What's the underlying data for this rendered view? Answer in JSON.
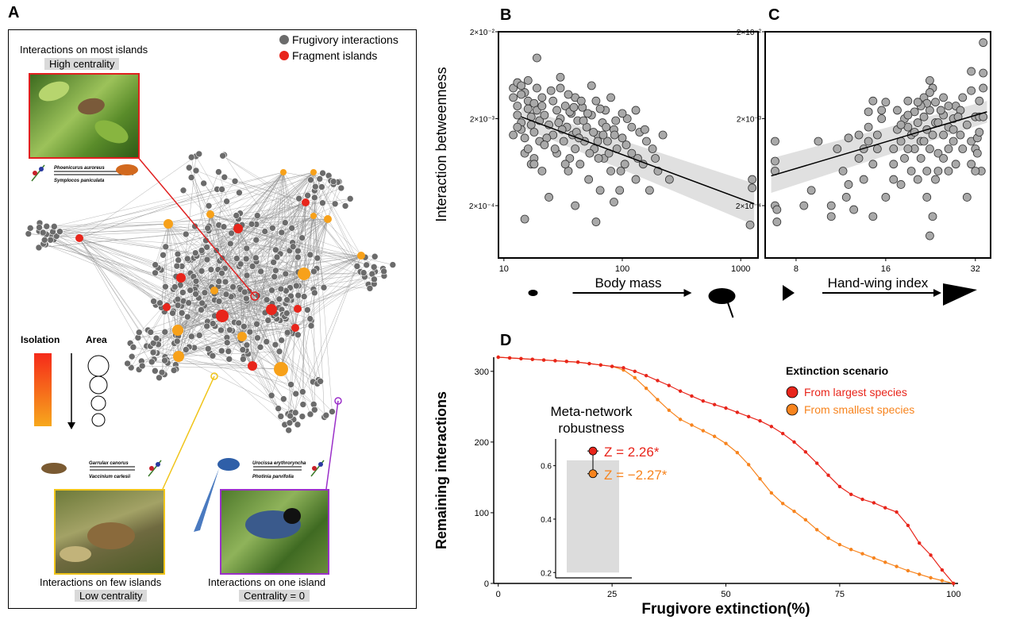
{
  "panels": {
    "a": "A",
    "b": "B",
    "c": "C",
    "d": "D"
  },
  "panel_a": {
    "legend": {
      "frugivory": "Frugivory interactions",
      "fragment": "Fragment islands"
    },
    "top_caption": "Interactions on most islands",
    "top_tag": "High centrality",
    "left_caption": "Interactions on few islands",
    "left_tag": "Low centrality",
    "right_caption": "Interactions on one island",
    "right_tag": "Centrality = 0",
    "isolation_label": "Isolation",
    "area_label": "Area",
    "species_top": {
      "bird": "Phoenicurus auroreus",
      "plant": "Symplocos paniculata"
    },
    "species_left": {
      "bird": "Garrulax canorus",
      "plant": "Vaccinium carlesii"
    },
    "species_right": {
      "bird": "Urocissa erythroryncha",
      "plant": "Photinia parvifolia"
    },
    "colors": {
      "node": "#6b6b6b",
      "red": "#e8251b",
      "orange": "#f7a11a",
      "border_top": "#e02020",
      "border_left": "#f0c419",
      "border_right": "#9b30c9"
    }
  },
  "y_axis_bc": "Interaction betweenness",
  "chart_data": [
    {
      "id": "B",
      "type": "scatter",
      "xlabel": "Body mass",
      "ylabel": "Interaction betweenness",
      "x_scale": "log",
      "y_scale": "log",
      "xlim": [
        9,
        1400
      ],
      "ylim": [
        5e-05,
        0.02
      ],
      "xticks": [
        10,
        100,
        1000
      ],
      "xtick_labels": [
        "10",
        "100",
        "1000"
      ],
      "yticks": [
        0.0002,
        0.002,
        0.02
      ],
      "ytick_labels": [
        "2×10⁻⁴",
        "2×10⁻³",
        "2×10⁻²"
      ],
      "trend": {
        "x": [
          14,
          1300
        ],
        "y": [
          0.0021,
          0.00021
        ],
        "ci_low_start": 0.0016,
        "ci_high_start": 0.0027,
        "ci_low_end": 0.00012,
        "ci_high_end": 0.00036
      },
      "points": [
        [
          12,
          0.0045
        ],
        [
          12,
          0.0035
        ],
        [
          13,
          0.0028
        ],
        [
          13,
          0.0022
        ],
        [
          14,
          0.0018
        ],
        [
          14,
          0.0015
        ],
        [
          15,
          0.0012
        ],
        [
          15,
          0.004
        ],
        [
          16,
          0.0032
        ],
        [
          16,
          0.0026
        ],
        [
          17,
          0.0021
        ],
        [
          17,
          0.0017
        ],
        [
          18,
          0.0014
        ],
        [
          18,
          0.003
        ],
        [
          19,
          0.0025
        ],
        [
          19,
          0.0045
        ],
        [
          20,
          0.0019
        ],
        [
          20,
          0.0011
        ],
        [
          21,
          0.0035
        ],
        [
          21,
          0.0028
        ],
        [
          22,
          0.0022
        ],
        [
          12,
          0.0013
        ],
        [
          13,
          0.0016
        ],
        [
          14,
          0.0038
        ],
        [
          15,
          0.0008
        ],
        [
          16,
          0.0009
        ],
        [
          17,
          0.0006
        ],
        [
          18,
          0.0007
        ],
        [
          19,
          0.01
        ],
        [
          21,
          0.0005
        ],
        [
          24,
          0.0017
        ],
        [
          26,
          0.0032
        ],
        [
          26,
          0.0013
        ],
        [
          28,
          0.0025
        ],
        [
          28,
          0.0008
        ],
        [
          30,
          0.002
        ],
        [
          30,
          0.0045
        ],
        [
          32,
          0.0011
        ],
        [
          33,
          0.0028
        ],
        [
          34,
          0.0016
        ],
        [
          35,
          0.0005
        ],
        [
          36,
          0.0007
        ],
        [
          37,
          0.0023
        ],
        [
          38,
          0.0013
        ],
        [
          40,
          0.0035
        ],
        [
          40,
          0.0009
        ],
        [
          42,
          0.0019
        ],
        [
          44,
          0.0006
        ],
        [
          46,
          0.0027
        ],
        [
          48,
          0.0011
        ],
        [
          50,
          0.0016
        ],
        [
          52,
          0.0004
        ],
        [
          55,
          0.0022
        ],
        [
          58,
          0.0009
        ],
        [
          60,
          0.0032
        ],
        [
          62,
          0.0013
        ],
        [
          65,
          0.0003
        ],
        [
          68,
          0.0018
        ],
        [
          70,
          0.0007
        ],
        [
          72,
          0.0025
        ],
        [
          75,
          0.0011
        ],
        [
          80,
          0.0005
        ],
        [
          85,
          0.0015
        ],
        [
          90,
          0.0009
        ],
        [
          95,
          0.0003
        ],
        [
          100,
          0.0012
        ],
        [
          105,
          0.0006
        ],
        [
          110,
          0.002
        ],
        [
          120,
          0.0008
        ],
        [
          130,
          0.0004
        ],
        [
          140,
          0.0014
        ],
        [
          150,
          0.0006
        ],
        [
          160,
          0.0011
        ],
        [
          170,
          0.0003
        ],
        [
          180,
          0.0009
        ],
        [
          200,
          0.0005
        ],
        [
          220,
          0.0013
        ],
        [
          250,
          0.0004
        ],
        [
          25,
          0.0042
        ],
        [
          30,
          0.006
        ],
        [
          35,
          0.0038
        ],
        [
          45,
          0.0032
        ],
        [
          55,
          0.0048
        ],
        [
          65,
          0.0026
        ],
        [
          80,
          0.0035
        ],
        [
          100,
          0.0023
        ],
        [
          23,
          0.0012
        ],
        [
          27,
          0.0009
        ],
        [
          31,
          0.0015
        ],
        [
          36,
          0.0024
        ],
        [
          41,
          0.0014
        ],
        [
          47,
          0.0019
        ],
        [
          53,
          0.0008
        ],
        [
          62,
          0.0011
        ],
        [
          73,
          0.0016
        ],
        [
          86,
          0.0013
        ],
        [
          97,
          0.0005
        ],
        [
          120,
          0.0016
        ],
        [
          1200,
          0.00012
        ],
        [
          1250,
          0.0004
        ],
        [
          1250,
          0.00032
        ],
        [
          15,
          0.00014
        ],
        [
          60,
          0.00013
        ],
        [
          40,
          0.0002
        ],
        [
          24,
          0.00025
        ],
        [
          85,
          0.00022
        ],
        [
          13,
          0.0052
        ],
        [
          14,
          0.0048
        ],
        [
          16,
          0.0055
        ],
        [
          18,
          0.0006
        ],
        [
          22,
          0.001
        ],
        [
          29,
          0.0018
        ],
        [
          33,
          0.0006
        ],
        [
          39,
          0.0027
        ],
        [
          43,
          0.0012
        ],
        [
          51,
          0.0023
        ],
        [
          57,
          0.0014
        ],
        [
          63,
          0.0007
        ],
        [
          69,
          0.0013
        ],
        [
          77,
          0.0008
        ],
        [
          88,
          0.0019
        ],
        [
          108,
          0.001
        ],
        [
          135,
          0.0007
        ],
        [
          155,
          0.0015
        ],
        [
          190,
          0.0007
        ],
        [
          130,
          0.0025
        ]
      ]
    },
    {
      "id": "C",
      "type": "scatter",
      "xlabel": "Hand-wing index",
      "ylabel": "Interaction betweenness",
      "x_scale": "log",
      "y_scale": "log",
      "xlim": [
        6.3,
        36
      ],
      "ylim": [
        5e-05,
        0.02
      ],
      "xticks": [
        8,
        16,
        32
      ],
      "xtick_labels": [
        "8",
        "16",
        "32"
      ],
      "yticks": [
        0.0002,
        0.002,
        0.02
      ],
      "ytick_labels": [
        "2×10⁻⁴",
        "2×10⁻³",
        "2×10⁻²"
      ],
      "trend": {
        "x": [
          6.6,
          35
        ],
        "y": [
          0.00044,
          0.0024
        ],
        "ci_low_start": 0.00028,
        "ci_high_start": 0.0007,
        "ci_low_end": 0.0018,
        "ci_high_end": 0.0032
      },
      "points": [
        [
          6.8,
          0.0011
        ],
        [
          6.8,
          0.00065
        ],
        [
          6.8,
          0.0005
        ],
        [
          6.9,
          0.00013
        ],
        [
          6.8,
          0.0002
        ],
        [
          6.9,
          0.00018
        ],
        [
          8.5,
          0.0002
        ],
        [
          9,
          0.0003
        ],
        [
          9.5,
          0.0011
        ],
        [
          10.5,
          0.0002
        ],
        [
          10.5,
          0.00015
        ],
        [
          11,
          0.0009
        ],
        [
          11.5,
          0.0005
        ],
        [
          11.8,
          0.00025
        ],
        [
          12,
          0.0012
        ],
        [
          12.5,
          0.00018
        ],
        [
          13,
          0.0007
        ],
        [
          13.5,
          0.0009
        ],
        [
          13.5,
          0.0004
        ],
        [
          14,
          0.0024
        ],
        [
          14,
          0.0016
        ],
        [
          14,
          0.0011
        ],
        [
          14.5,
          0.0032
        ],
        [
          14.5,
          0.0006
        ],
        [
          14.5,
          0.00015
        ],
        [
          15,
          0.0013
        ],
        [
          15,
          0.0009
        ],
        [
          15.5,
          0.002
        ],
        [
          16,
          0.00025
        ],
        [
          17,
          0.0009
        ],
        [
          17,
          0.0006
        ],
        [
          17,
          0.0004
        ],
        [
          17.5,
          0.0025
        ],
        [
          17.5,
          0.0015
        ],
        [
          18,
          0.0011
        ],
        [
          18,
          0.00035
        ],
        [
          18.5,
          0.002
        ],
        [
          18.5,
          0.0007
        ],
        [
          19,
          0.0016
        ],
        [
          19,
          0.0032
        ],
        [
          19.5,
          0.0013
        ],
        [
          19.5,
          0.0005
        ],
        [
          20,
          0.0009
        ],
        [
          20,
          0.0024
        ],
        [
          20.5,
          0.0018
        ],
        [
          20.5,
          0.0004
        ],
        [
          21,
          0.0011
        ],
        [
          21,
          0.0007
        ],
        [
          21.5,
          0.0021
        ],
        [
          21.5,
          0.0035
        ],
        [
          22,
          0.0015
        ],
        [
          22,
          0.0005
        ],
        [
          22.5,
          0.0025
        ],
        [
          22.5,
          0.0009
        ],
        [
          23,
          0.0013
        ],
        [
          23,
          0.0045
        ],
        [
          23.5,
          0.0018
        ],
        [
          23.5,
          0.0004
        ],
        [
          22.5,
          0.0055
        ],
        [
          22.5,
          0.004
        ],
        [
          22,
          0.003
        ],
        [
          21,
          0.0028
        ],
        [
          20,
          0.0014
        ],
        [
          19,
          0.0022
        ],
        [
          21.5,
          0.0011
        ],
        [
          22,
          0.00025
        ],
        [
          22.5,
          9e-05
        ],
        [
          23,
          0.00015
        ],
        [
          24,
          0.0018
        ],
        [
          24,
          0.0008
        ],
        [
          24,
          0.0005
        ],
        [
          25,
          0.0022
        ],
        [
          25,
          0.0013
        ],
        [
          25,
          0.0007
        ],
        [
          25,
          0.0035
        ],
        [
          26,
          0.0016
        ],
        [
          26,
          0.0009
        ],
        [
          26,
          0.0005
        ],
        [
          27,
          0.0011
        ],
        [
          27,
          0.002
        ],
        [
          27.5,
          0.0028
        ],
        [
          27.5,
          0.0006
        ],
        [
          28.5,
          0.0025
        ],
        [
          28.5,
          0.0013
        ],
        [
          29,
          0.0009
        ],
        [
          30,
          0.0017
        ],
        [
          30,
          0.00025
        ],
        [
          31,
          0.0011
        ],
        [
          31,
          0.007
        ],
        [
          31,
          0.0042
        ],
        [
          32,
          0.0009
        ],
        [
          32,
          0.0021
        ],
        [
          32.5,
          0.0008
        ],
        [
          32.5,
          0.0012
        ],
        [
          33,
          0.0021
        ],
        [
          33,
          0.0032
        ],
        [
          33.5,
          0.0005
        ],
        [
          34,
          0.0021
        ],
        [
          34,
          0.015
        ],
        [
          34,
          0.0067
        ],
        [
          34,
          0.0045
        ],
        [
          33,
          0.0014
        ],
        [
          32,
          0.0005
        ],
        [
          31,
          0.0006
        ],
        [
          29,
          0.0035
        ],
        [
          28,
          0.0021
        ],
        [
          27,
          0.0015
        ],
        [
          26,
          0.0028
        ],
        [
          24.5,
          0.0025
        ],
        [
          23.5,
          0.0031
        ],
        [
          20.5,
          0.0031
        ],
        [
          19,
          0.0009
        ],
        [
          18,
          0.0017
        ],
        [
          16,
          0.0031
        ],
        [
          15.5,
          0.0025
        ],
        [
          13,
          0.0013
        ],
        [
          12,
          0.00035
        ]
      ]
    },
    {
      "id": "D",
      "type": "line",
      "xlabel": "Frugivore extinction(%)",
      "ylabel": "Remaining interactions",
      "xlim": [
        -1,
        101
      ],
      "ylim": [
        0,
        320
      ],
      "xticks": [
        0,
        25,
        50,
        75,
        100
      ],
      "yticks": [
        0,
        100,
        200,
        300
      ],
      "legend_title": "Extinction scenario",
      "series": [
        {
          "name": "From largest species",
          "color": "#e8251b",
          "x": [
            0,
            2.5,
            5,
            7.5,
            10,
            12.5,
            15,
            17.5,
            20,
            22.5,
            25,
            27.5,
            30,
            32.5,
            35,
            37.5,
            40,
            42.5,
            45,
            47.5,
            50,
            52.5,
            55,
            57.5,
            60,
            62.5,
            65,
            67.5,
            70,
            72.5,
            75,
            77.5,
            80,
            82.5,
            85,
            87.5,
            90,
            92.5,
            95,
            97.5,
            100
          ],
          "y": [
            320,
            319,
            318,
            317,
            316,
            315,
            314,
            313,
            311,
            309,
            307,
            305,
            300,
            294,
            287,
            280,
            272,
            265,
            258,
            253,
            248,
            242,
            236,
            230,
            222,
            212,
            200,
            186,
            170,
            153,
            137,
            126,
            119,
            114,
            107,
            101,
            82,
            57,
            40,
            19,
            0
          ]
        },
        {
          "name": "From smallest species",
          "color": "#f7841e",
          "x": [
            0,
            2.5,
            5,
            7.5,
            10,
            12.5,
            15,
            17.5,
            20,
            22.5,
            25,
            27.5,
            30,
            32.5,
            35,
            37.5,
            40,
            42.5,
            45,
            47.5,
            50,
            52.5,
            55,
            57.5,
            60,
            62.5,
            65,
            67.5,
            70,
            72.5,
            75,
            77.5,
            80,
            82.5,
            85,
            87.5,
            90,
            92.5,
            95,
            97.5,
            100
          ],
          "y": [
            320,
            319,
            318,
            317,
            316,
            315,
            314,
            313,
            311,
            309,
            307,
            302,
            291,
            276,
            260,
            245,
            232,
            224,
            216,
            208,
            198,
            185,
            168,
            148,
            128,
            113,
            102,
            90,
            76,
            64,
            55,
            48,
            42,
            36,
            30,
            24,
            18,
            13,
            8,
            4,
            0
          ]
        }
      ],
      "inset": {
        "title_line1": "Meta-network",
        "title_line2": "robustness",
        "yticks": [
          0.2,
          0.4,
          0.6
        ],
        "ylim": [
          0.18,
          0.7
        ],
        "bar_range": [
          0.2,
          0.62
        ],
        "red_point": 0.655,
        "orange_point": 0.57,
        "red_z": "Z = 2.26*",
        "orange_z": "Z = −2.27*"
      }
    }
  ]
}
